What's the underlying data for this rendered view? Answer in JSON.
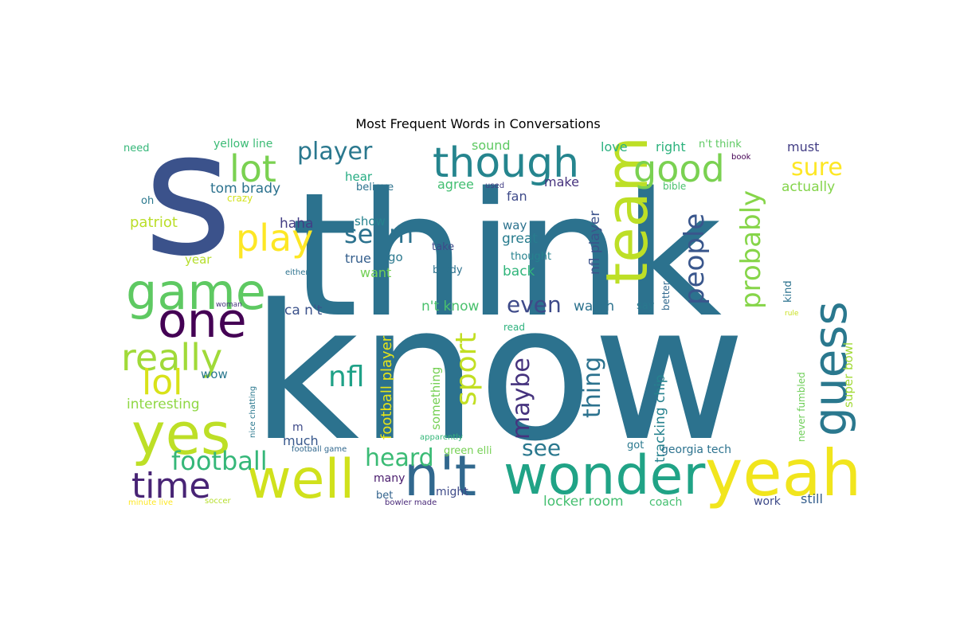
{
  "chart_data": {
    "type": "wordcloud",
    "title": "Most Frequent Words in Conversations",
    "words": [
      {
        "text": "know",
        "size": 1.0,
        "color": "#2c728e"
      },
      {
        "text": "think",
        "size": 0.9,
        "color": "#2c728e"
      },
      {
        "text": "s",
        "size": 0.7,
        "color": "#3b528b"
      },
      {
        "text": "yeah",
        "size": 0.34,
        "color": "#f1e51d"
      },
      {
        "text": "wonder",
        "size": 0.3,
        "color": "#20a386"
      },
      {
        "text": "team",
        "size": 0.3,
        "color": "#bddf26"
      },
      {
        "text": "yes",
        "size": 0.32,
        "color": "#bddf26"
      },
      {
        "text": "well",
        "size": 0.3,
        "color": "#d0e11c"
      },
      {
        "text": "n't",
        "size": 0.3,
        "color": "#31688e"
      },
      {
        "text": "one",
        "size": 0.3,
        "color": "#440154"
      },
      {
        "text": "game",
        "size": 0.3,
        "color": "#5ec962"
      },
      {
        "text": "guess",
        "size": 0.28,
        "color": "#2a788e"
      },
      {
        "text": "though",
        "size": 0.25,
        "color": "#25858e"
      },
      {
        "text": "good",
        "size": 0.22,
        "color": "#7ad151"
      },
      {
        "text": "really",
        "size": 0.22,
        "color": "#a0da39"
      },
      {
        "text": "lot",
        "size": 0.22,
        "color": "#7ad151"
      },
      {
        "text": "play",
        "size": 0.22,
        "color": "#fde725"
      },
      {
        "text": "time",
        "size": 0.2,
        "color": "#482475"
      },
      {
        "text": "lol",
        "size": 0.2,
        "color": "#d8e219"
      },
      {
        "text": "sport",
        "size": 0.18,
        "color": "#c2df23"
      },
      {
        "text": "nfl",
        "size": 0.17,
        "color": "#1fa187"
      },
      {
        "text": "seem",
        "size": 0.16,
        "color": "#2c728e"
      },
      {
        "text": "probably",
        "size": 0.16,
        "color": "#86d549"
      },
      {
        "text": "people",
        "size": 0.16,
        "color": "#39568c"
      },
      {
        "text": "heard",
        "size": 0.15,
        "color": "#3bbb75"
      },
      {
        "text": "maybe",
        "size": 0.15,
        "color": "#46337e"
      },
      {
        "text": "football",
        "size": 0.15,
        "color": "#35b779"
      },
      {
        "text": "player",
        "size": 0.15,
        "color": "#2a788e"
      },
      {
        "text": "thing",
        "size": 0.15,
        "color": "#2c728e"
      },
      {
        "text": "even",
        "size": 0.15,
        "color": "#3e4a89"
      },
      {
        "text": "sure",
        "size": 0.15,
        "color": "#fde725"
      },
      {
        "text": "see",
        "size": 0.14,
        "color": "#2a788e"
      },
      {
        "text": "football player",
        "size": 0.09,
        "color": "#e5e419"
      },
      {
        "text": "locker room",
        "size": 0.08,
        "color": "#44bf70"
      },
      {
        "text": "tracking chip",
        "size": 0.08,
        "color": "#26828e"
      },
      {
        "text": "nfl player",
        "size": 0.08,
        "color": "#3b528b"
      },
      {
        "text": "actually",
        "size": 0.08,
        "color": "#84d44b"
      },
      {
        "text": "super bowl",
        "size": 0.07,
        "color": "#a2da37"
      },
      {
        "text": "something",
        "size": 0.07,
        "color": "#75d054"
      },
      {
        "text": "n't know",
        "size": 0.08,
        "color": "#4ac16d"
      },
      {
        "text": "ca n't",
        "size": 0.08,
        "color": "#3b528b"
      },
      {
        "text": "interesting",
        "size": 0.08,
        "color": "#8fd744"
      },
      {
        "text": "tom brady",
        "size": 0.08,
        "color": "#2c728e"
      },
      {
        "text": "patriot",
        "size": 0.08,
        "color": "#bade28"
      },
      {
        "text": "watch",
        "size": 0.08,
        "color": "#2c728e"
      },
      {
        "text": "great",
        "size": 0.08,
        "color": "#287c8e"
      },
      {
        "text": "back",
        "size": 0.08,
        "color": "#31b57b"
      },
      {
        "text": "love",
        "size": 0.07,
        "color": "#2ab07f"
      },
      {
        "text": "right",
        "size": 0.07,
        "color": "#2db27d"
      },
      {
        "text": "must",
        "size": 0.07,
        "color": "#433e85"
      },
      {
        "text": "still",
        "size": 0.07,
        "color": "#355f8d"
      },
      {
        "text": "much",
        "size": 0.07,
        "color": "#38588c"
      },
      {
        "text": "haha",
        "size": 0.07,
        "color": "#433e85"
      },
      {
        "text": "sound",
        "size": 0.07,
        "color": "#5ec962"
      },
      {
        "text": "true",
        "size": 0.07,
        "color": "#355f8d"
      },
      {
        "text": "want",
        "size": 0.07,
        "color": "#73d056"
      },
      {
        "text": "fan",
        "size": 0.07,
        "color": "#3e4a89"
      },
      {
        "text": "make",
        "size": 0.07,
        "color": "#46327e"
      },
      {
        "text": "agree",
        "size": 0.07,
        "color": "#42be71"
      },
      {
        "text": "show",
        "size": 0.07,
        "color": "#26828e"
      },
      {
        "text": "way",
        "size": 0.07,
        "color": "#2c728e"
      },
      {
        "text": "hear",
        "size": 0.07,
        "color": "#25ac82"
      },
      {
        "text": "wow",
        "size": 0.07,
        "color": "#2a788e"
      },
      {
        "text": "year",
        "size": 0.07,
        "color": "#b5de2b"
      },
      {
        "text": "go",
        "size": 0.07,
        "color": "#2a788e"
      },
      {
        "text": "georgia tech",
        "size": 0.06,
        "color": "#2c728e"
      },
      {
        "text": "green elli",
        "size": 0.06,
        "color": "#75d054"
      },
      {
        "text": "never fumbled",
        "size": 0.05,
        "color": "#6ece58"
      },
      {
        "text": "yellow line",
        "size": 0.06,
        "color": "#3bbb75"
      },
      {
        "text": "n't think",
        "size": 0.06,
        "color": "#5ec962"
      },
      {
        "text": "m",
        "size": 0.06,
        "color": "#3e4a89"
      },
      {
        "text": "coach",
        "size": 0.06,
        "color": "#44bf70"
      },
      {
        "text": "work",
        "size": 0.06,
        "color": "#3e4a89"
      },
      {
        "text": "might",
        "size": 0.06,
        "color": "#3e4a89"
      },
      {
        "text": "many",
        "size": 0.06,
        "color": "#481a6c"
      },
      {
        "text": "bet",
        "size": 0.06,
        "color": "#33638d"
      },
      {
        "text": "kind",
        "size": 0.06,
        "color": "#2c728e"
      },
      {
        "text": "better",
        "size": 0.05,
        "color": "#31688e"
      },
      {
        "text": "say",
        "size": 0.06,
        "color": "#2a788e"
      },
      {
        "text": "got",
        "size": 0.06,
        "color": "#2a788e"
      },
      {
        "text": "take",
        "size": 0.06,
        "color": "#3e4a89"
      },
      {
        "text": "brady",
        "size": 0.06,
        "color": "#2c728e"
      },
      {
        "text": "thought",
        "size": 0.06,
        "color": "#26828e"
      },
      {
        "text": "believe",
        "size": 0.06,
        "color": "#2c728e"
      },
      {
        "text": "crazy",
        "size": 0.05,
        "color": "#d2e21b"
      },
      {
        "text": "need",
        "size": 0.05,
        "color": "#35b779"
      },
      {
        "text": "oh",
        "size": 0.05,
        "color": "#2a788e"
      },
      {
        "text": "read",
        "size": 0.05,
        "color": "#2db27d"
      },
      {
        "text": "bible",
        "size": 0.05,
        "color": "#4ac16d"
      },
      {
        "text": "book",
        "size": 0.04,
        "color": "#440154"
      },
      {
        "text": "used",
        "size": 0.04,
        "color": "#433e85"
      },
      {
        "text": "either",
        "size": 0.04,
        "color": "#2c728e"
      },
      {
        "text": "woman",
        "size": 0.035,
        "color": "#46337e"
      },
      {
        "text": "rule",
        "size": 0.035,
        "color": "#c8e020"
      },
      {
        "text": "nice chatting",
        "size": 0.04,
        "color": "#2a788e"
      },
      {
        "text": "football game",
        "size": 0.04,
        "color": "#31688e"
      },
      {
        "text": "apparently",
        "size": 0.04,
        "color": "#35b779"
      },
      {
        "text": "soccer",
        "size": 0.04,
        "color": "#b5de2b"
      },
      {
        "text": "minute live",
        "size": 0.04,
        "color": "#fde725"
      },
      {
        "text": "bowler made",
        "size": 0.04,
        "color": "#482878"
      }
    ]
  }
}
